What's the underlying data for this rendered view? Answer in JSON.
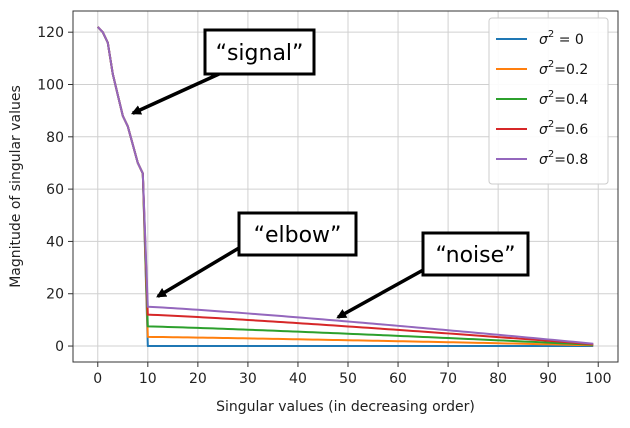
{
  "chart_data": {
    "type": "line",
    "title": "",
    "xlabel": "Singular values (in decreasing order)",
    "ylabel": "Magnitude of singular values",
    "xlim": [
      -4.95,
      103.95
    ],
    "ylim": [
      -6.1,
      128.1
    ],
    "xticks": [
      0,
      10,
      20,
      30,
      40,
      50,
      60,
      70,
      80,
      90,
      100
    ],
    "yticks": [
      0,
      20,
      40,
      60,
      80,
      100,
      120
    ],
    "grid": true,
    "legend_position": "top-right",
    "signal": {
      "x": [
        0,
        1,
        2,
        3,
        4,
        5,
        6,
        7,
        8,
        9
      ],
      "values": [
        122,
        120,
        116,
        104,
        96,
        88,
        84,
        77,
        70,
        66
      ]
    },
    "series": [
      {
        "name": "σ² = 0",
        "label_base": "σ",
        "label_sup": "2",
        "label_suffix": " = 0",
        "color": "#1f77b4",
        "tail_start": 0.0,
        "tail_end": 0.0
      },
      {
        "name": "σ²=0.2",
        "label_base": "σ",
        "label_sup": "2",
        "label_suffix": "=0.2",
        "color": "#ff7f0e",
        "tail_start": 3.5,
        "tail_end": 0.3
      },
      {
        "name": "σ²=0.4",
        "label_base": "σ",
        "label_sup": "2",
        "label_suffix": "=0.4",
        "color": "#2ca02c",
        "tail_start": 7.5,
        "tail_end": 0.5
      },
      {
        "name": "σ²=0.6",
        "label_base": "σ",
        "label_sup": "2",
        "label_suffix": "=0.6",
        "color": "#d62728",
        "tail_start": 12.0,
        "tail_end": 0.7
      },
      {
        "name": "σ²=0.8",
        "label_base": "σ",
        "label_sup": "2",
        "label_suffix": "=0.8",
        "color": "#9467bd",
        "tail_start": 15.0,
        "tail_end": 0.9
      }
    ],
    "tail_x_range": [
      10,
      99
    ],
    "annotations": [
      {
        "id": "signal",
        "text": "“signal”",
        "arrow_to": [
          7,
          89
        ]
      },
      {
        "id": "elbow",
        "text": "“elbow”",
        "arrow_to": [
          12,
          19
        ]
      },
      {
        "id": "noise",
        "text": "“noise”",
        "arrow_to": [
          48,
          11
        ]
      }
    ]
  }
}
